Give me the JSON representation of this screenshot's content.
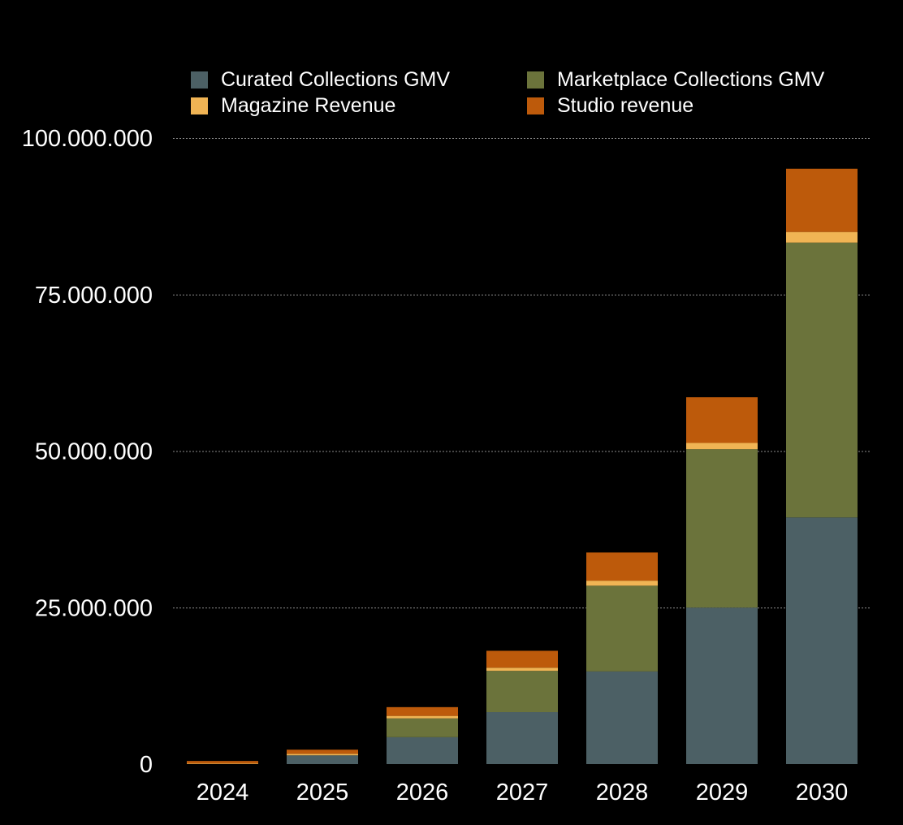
{
  "chart_data": {
    "type": "bar",
    "stacked": true,
    "title": "",
    "xlabel": "",
    "ylabel": "",
    "categories": [
      "2024",
      "2025",
      "2026",
      "2027",
      "2028",
      "2029",
      "2030"
    ],
    "series": [
      {
        "name": "Curated Collections GMV",
        "color": "#4c6065",
        "values": [
          0,
          1400000,
          4300000,
          8300000,
          14800000,
          25000000,
          39400000
        ]
      },
      {
        "name": "Marketplace Collections GMV",
        "color": "#6b733b",
        "values": [
          0,
          0,
          3000000,
          6600000,
          13700000,
          25300000,
          43900000
        ]
      },
      {
        "name": "Magazine Revenue",
        "color": "#f0b454",
        "values": [
          100000,
          250000,
          400000,
          500000,
          800000,
          1000000,
          1700000
        ]
      },
      {
        "name": "Studio revenue",
        "color": "#bd5a0b",
        "values": [
          400000,
          650000,
          1400000,
          2700000,
          4500000,
          7300000,
          10100000
        ]
      }
    ],
    "ylim": [
      0,
      100000000
    ],
    "yticks": [
      0,
      25000000,
      50000000,
      75000000,
      100000000
    ],
    "ytick_labels": [
      "0",
      "25.000.000",
      "50.000.000",
      "75.000.000",
      "100.000.000"
    ],
    "grid": true,
    "grid_style": "dotted",
    "legend_position": "top",
    "legend_columns": 2
  },
  "colors": {
    "background": "#000000",
    "text": "#ffffff",
    "grid": "#8a8a8a"
  }
}
